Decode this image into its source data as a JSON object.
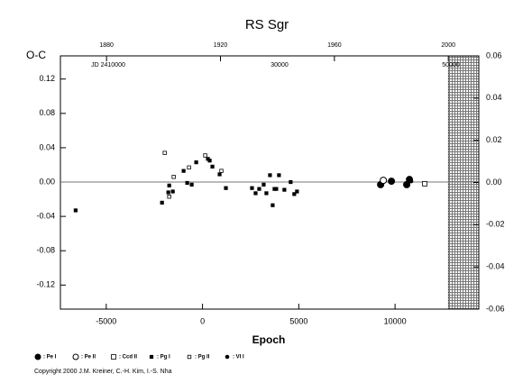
{
  "chart_data": {
    "type": "scatter",
    "title": "RS Sgr",
    "y_label": "O-C",
    "x_label": "Epoch",
    "copyright": "Copyright 2000 J.M. Kreiner, C.-H. Kim, I.-S. Nha",
    "xlim": [
      -7380,
      14350
    ],
    "xticks": [
      -5000,
      0,
      5000,
      10000
    ],
    "ylim": [
      -0.148,
      0.147
    ],
    "yticks": [
      0.12,
      0.08,
      0.04,
      {
        "value": 0,
        "label": "0.00"
      },
      -0.04,
      -0.08,
      -0.12
    ],
    "y2lim": [
      -0.06,
      0.06
    ],
    "y2ticks": [
      0.06,
      0.04,
      0.02,
      {
        "value": 0,
        "label": "0.00"
      },
      -0.02,
      -0.04,
      -0.06
    ],
    "x2lim": [
      1863.8,
      2010.7
    ],
    "x2ticks": [
      1880,
      1920,
      1960,
      2000
    ],
    "jdlim": [
      2404421,
      2453263
    ],
    "jdticks": [
      {
        "value": 2410000,
        "label": "JD 2410000"
      },
      {
        "value": 2430000,
        "label": "30000"
      },
      {
        "value": 2450000,
        "label": "50000"
      }
    ],
    "shade_from_x2": 2000,
    "zero_line": true,
    "color": "#000000",
    "series": [
      {
        "name": ": Pe I",
        "marker": "circle",
        "filled": true,
        "size": 3.5,
        "x": [
          9252,
          9813,
          10607,
          10748
        ],
        "values": [
          -0.003,
          0.001,
          -0.003,
          0.003
        ]
      },
      {
        "name": ": Pe II",
        "marker": "circle",
        "filled": false,
        "size": 3.5,
        "x": [
          9393
        ],
        "values": [
          0.002
        ]
      },
      {
        "name": ": Ccd II",
        "marker": "square",
        "filled": false,
        "size": 2.5,
        "x": [
          11542
        ],
        "values": [
          -0.002
        ]
      },
      {
        "name": ": Pg I",
        "marker": "square",
        "filled": true,
        "size": 1.7,
        "x": [
          -6589,
          -1729,
          -1542,
          -981,
          -794,
          -2103,
          -1776,
          -561,
          -327,
          514,
          280,
          374,
          888,
          1215,
          2570,
          2757,
          2944,
          3178,
          3318,
          3505,
          3645,
          3739,
          3832,
          3972,
          4252,
          4579,
          4766,
          4907
        ],
        "values": [
          -0.033,
          -0.004,
          -0.011,
          0.013,
          -0.001,
          -0.024,
          -0.012,
          -0.003,
          0.023,
          0.018,
          0.027,
          0.025,
          0.009,
          -0.007,
          -0.007,
          -0.013,
          -0.008,
          -0.003,
          -0.013,
          0.008,
          -0.027,
          -0.008,
          -0.008,
          0.008,
          -0.009,
          0.0,
          -0.014,
          -0.011
        ]
      },
      {
        "name": ": Pg II",
        "marker": "square",
        "filled": false,
        "size": 1.8,
        "x": [
          -1729,
          -1963,
          -1496,
          -701,
          140,
          981
        ],
        "values": [
          -0.017,
          0.034,
          0.006,
          0.017,
          0.031,
          0.013
        ]
      },
      {
        "name": ": VI I",
        "marker": "circle",
        "filled": true,
        "size": 1.8,
        "x": [
          10841
        ],
        "values": [
          0.001
        ]
      }
    ]
  }
}
